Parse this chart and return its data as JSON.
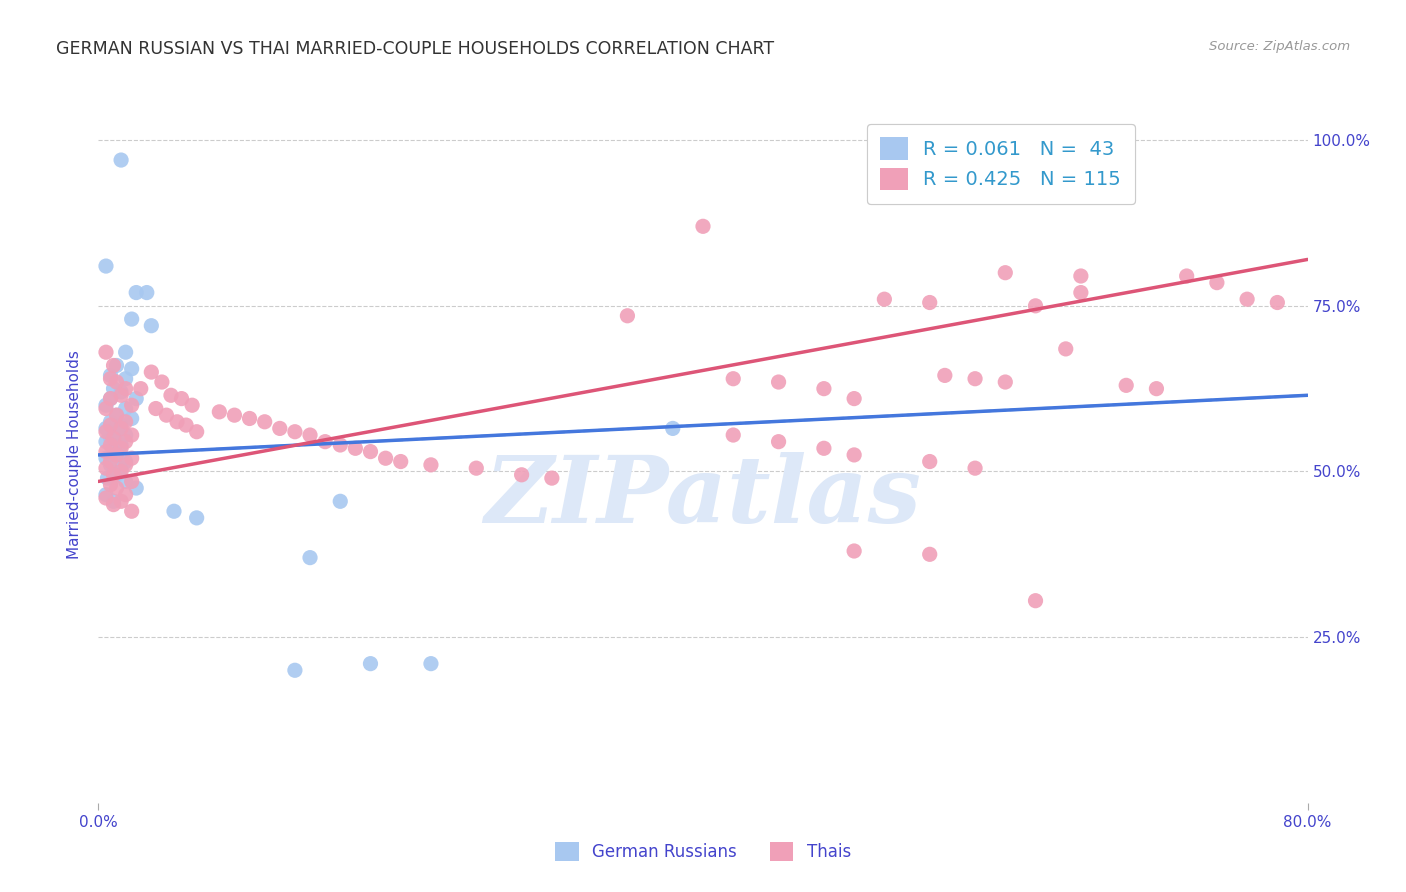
{
  "title": "GERMAN RUSSIAN VS THAI MARRIED-COUPLE HOUSEHOLDS CORRELATION CHART",
  "source": "Source: ZipAtlas.com",
  "ylabel": "Married-couple Households",
  "bottom_legend": [
    "German Russians",
    "Thais"
  ],
  "x_min": 0.0,
  "x_max": 0.8,
  "y_min": 0.0,
  "y_max": 1.05,
  "blue_scatter": [
    [
      0.015,
      0.97
    ],
    [
      0.005,
      0.81
    ],
    [
      0.025,
      0.77
    ],
    [
      0.032,
      0.77
    ],
    [
      0.022,
      0.73
    ],
    [
      0.035,
      0.72
    ],
    [
      0.018,
      0.68
    ],
    [
      0.012,
      0.66
    ],
    [
      0.022,
      0.655
    ],
    [
      0.008,
      0.645
    ],
    [
      0.018,
      0.64
    ],
    [
      0.01,
      0.625
    ],
    [
      0.015,
      0.62
    ],
    [
      0.008,
      0.61
    ],
    [
      0.025,
      0.61
    ],
    [
      0.005,
      0.6
    ],
    [
      0.018,
      0.595
    ],
    [
      0.012,
      0.585
    ],
    [
      0.022,
      0.58
    ],
    [
      0.008,
      0.575
    ],
    [
      0.015,
      0.57
    ],
    [
      0.005,
      0.565
    ],
    [
      0.012,
      0.56
    ],
    [
      0.018,
      0.555
    ],
    [
      0.008,
      0.55
    ],
    [
      0.005,
      0.545
    ],
    [
      0.015,
      0.54
    ],
    [
      0.01,
      0.535
    ],
    [
      0.012,
      0.525
    ],
    [
      0.005,
      0.52
    ],
    [
      0.018,
      0.515
    ],
    [
      0.008,
      0.51
    ],
    [
      0.015,
      0.505
    ],
    [
      0.012,
      0.495
    ],
    [
      0.006,
      0.49
    ],
    [
      0.018,
      0.485
    ],
    [
      0.025,
      0.475
    ],
    [
      0.005,
      0.465
    ],
    [
      0.01,
      0.455
    ],
    [
      0.05,
      0.44
    ],
    [
      0.065,
      0.43
    ],
    [
      0.14,
      0.37
    ],
    [
      0.18,
      0.21
    ],
    [
      0.22,
      0.21
    ],
    [
      0.13,
      0.2
    ],
    [
      0.16,
      0.455
    ],
    [
      0.38,
      0.565
    ]
  ],
  "pink_scatter": [
    [
      0.005,
      0.68
    ],
    [
      0.01,
      0.66
    ],
    [
      0.008,
      0.64
    ],
    [
      0.012,
      0.635
    ],
    [
      0.018,
      0.625
    ],
    [
      0.015,
      0.615
    ],
    [
      0.008,
      0.61
    ],
    [
      0.022,
      0.6
    ],
    [
      0.005,
      0.595
    ],
    [
      0.012,
      0.585
    ],
    [
      0.018,
      0.575
    ],
    [
      0.008,
      0.57
    ],
    [
      0.015,
      0.565
    ],
    [
      0.005,
      0.56
    ],
    [
      0.022,
      0.555
    ],
    [
      0.01,
      0.55
    ],
    [
      0.018,
      0.545
    ],
    [
      0.008,
      0.54
    ],
    [
      0.015,
      0.535
    ],
    [
      0.005,
      0.53
    ],
    [
      0.012,
      0.525
    ],
    [
      0.022,
      0.52
    ],
    [
      0.008,
      0.515
    ],
    [
      0.018,
      0.51
    ],
    [
      0.005,
      0.505
    ],
    [
      0.015,
      0.5
    ],
    [
      0.01,
      0.495
    ],
    [
      0.022,
      0.485
    ],
    [
      0.008,
      0.48
    ],
    [
      0.012,
      0.475
    ],
    [
      0.018,
      0.465
    ],
    [
      0.005,
      0.46
    ],
    [
      0.015,
      0.455
    ],
    [
      0.01,
      0.45
    ],
    [
      0.022,
      0.44
    ],
    [
      0.035,
      0.65
    ],
    [
      0.042,
      0.635
    ],
    [
      0.028,
      0.625
    ],
    [
      0.048,
      0.615
    ],
    [
      0.055,
      0.61
    ],
    [
      0.062,
      0.6
    ],
    [
      0.038,
      0.595
    ],
    [
      0.045,
      0.585
    ],
    [
      0.052,
      0.575
    ],
    [
      0.058,
      0.57
    ],
    [
      0.065,
      0.56
    ],
    [
      0.08,
      0.59
    ],
    [
      0.09,
      0.585
    ],
    [
      0.1,
      0.58
    ],
    [
      0.11,
      0.575
    ],
    [
      0.12,
      0.565
    ],
    [
      0.13,
      0.56
    ],
    [
      0.14,
      0.555
    ],
    [
      0.15,
      0.545
    ],
    [
      0.16,
      0.54
    ],
    [
      0.17,
      0.535
    ],
    [
      0.18,
      0.53
    ],
    [
      0.19,
      0.52
    ],
    [
      0.2,
      0.515
    ],
    [
      0.22,
      0.51
    ],
    [
      0.25,
      0.505
    ],
    [
      0.28,
      0.495
    ],
    [
      0.3,
      0.49
    ],
    [
      0.35,
      0.735
    ],
    [
      0.4,
      0.87
    ],
    [
      0.42,
      0.64
    ],
    [
      0.45,
      0.635
    ],
    [
      0.48,
      0.625
    ],
    [
      0.5,
      0.61
    ],
    [
      0.52,
      0.76
    ],
    [
      0.55,
      0.755
    ],
    [
      0.56,
      0.645
    ],
    [
      0.58,
      0.64
    ],
    [
      0.6,
      0.635
    ],
    [
      0.62,
      0.75
    ],
    [
      0.64,
      0.685
    ],
    [
      0.65,
      0.77
    ],
    [
      0.68,
      0.63
    ],
    [
      0.7,
      0.625
    ],
    [
      0.72,
      0.795
    ],
    [
      0.74,
      0.785
    ],
    [
      0.76,
      0.76
    ],
    [
      0.78,
      0.755
    ],
    [
      0.5,
      0.38
    ],
    [
      0.55,
      0.375
    ],
    [
      0.62,
      0.305
    ],
    [
      0.42,
      0.555
    ],
    [
      0.45,
      0.545
    ],
    [
      0.48,
      0.535
    ],
    [
      0.5,
      0.525
    ],
    [
      0.55,
      0.515
    ],
    [
      0.58,
      0.505
    ],
    [
      0.6,
      0.8
    ],
    [
      0.65,
      0.795
    ]
  ],
  "blue_line": [
    [
      0.0,
      0.525
    ],
    [
      0.8,
      0.615
    ]
  ],
  "pink_line": [
    [
      0.0,
      0.485
    ],
    [
      0.8,
      0.82
    ]
  ],
  "blue_dashed_line": [
    [
      0.0,
      0.525
    ],
    [
      0.8,
      0.615
    ]
  ],
  "watermark_text": "ZIPatlas",
  "background_color": "#ffffff",
  "grid_color": "#cccccc",
  "title_color": "#333333",
  "axis_color": "#4444cc",
  "scatter_blue_color": "#a8c8f0",
  "scatter_pink_color": "#f0a0b8",
  "blue_line_color": "#4477dd",
  "pink_line_color": "#dd5577",
  "dashed_line_color": "#99bbee",
  "watermark_color": "#dde8f8",
  "legend_r_color": "#3399cc",
  "legend_n_color": "#3399cc"
}
